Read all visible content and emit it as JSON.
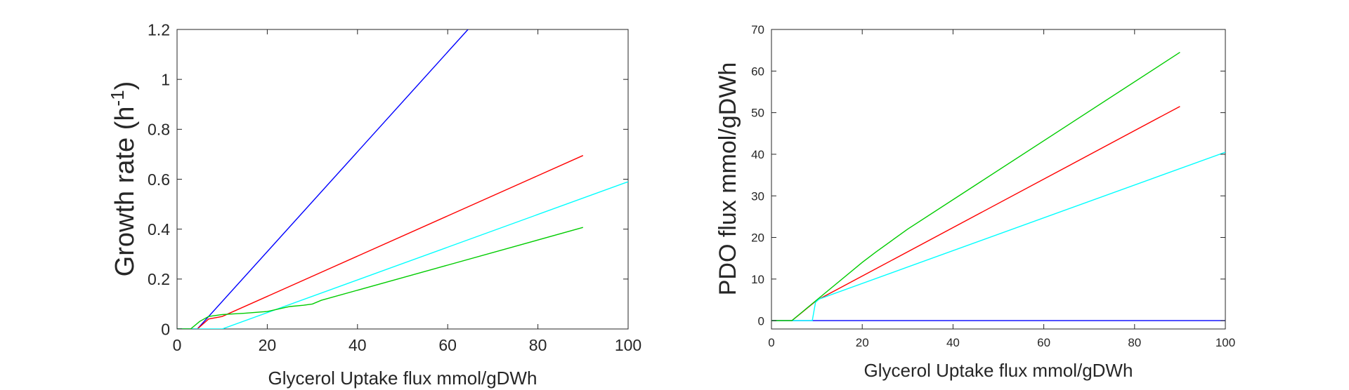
{
  "chart_data": [
    {
      "type": "line",
      "title": "",
      "xlabel": "Glycerol Uptake flux mmol/gDWh",
      "ylabel": "Growth rate (h",
      "ylabel_sup": "-1",
      "ylabel_suffix": ")",
      "xlim": [
        0,
        100
      ],
      "ylim": [
        0,
        1.2
      ],
      "xticks": [
        "0",
        "20",
        "40",
        "60",
        "80",
        "100"
      ],
      "yticks": [
        "0",
        "0.2",
        "0.4",
        "0.6",
        "0.8",
        "1",
        "1.2"
      ],
      "grid": false,
      "series": [
        {
          "color": "#0000ff",
          "x": [
            0,
            4.5,
            64.5
          ],
          "y": [
            0,
            0,
            1.2
          ]
        },
        {
          "color": "#ff0000",
          "x": [
            0,
            4.5,
            7,
            10,
            90
          ],
          "y": [
            0,
            0,
            0.04,
            0.05,
            0.695
          ]
        },
        {
          "color": "#00ffff",
          "x": [
            0,
            10,
            100
          ],
          "y": [
            0,
            0,
            0.59
          ]
        },
        {
          "color": "#00cc00",
          "x": [
            0,
            3,
            5,
            7,
            10,
            15,
            20,
            25,
            28,
            30,
            32,
            90
          ],
          "y": [
            0,
            0,
            0.03,
            0.05,
            0.058,
            0.063,
            0.07,
            0.09,
            0.095,
            0.1,
            0.115,
            0.407
          ]
        }
      ]
    },
    {
      "type": "line",
      "title": "",
      "xlabel": "Glycerol Uptake flux mmol/gDWh",
      "ylabel": "PDO flux mmol/gDWh",
      "xlim": [
        0,
        100
      ],
      "ylim": [
        -2,
        70
      ],
      "xticks": [
        "0",
        "20",
        "40",
        "60",
        "80",
        "100"
      ],
      "yticks": [
        "0",
        "10",
        "20",
        "30",
        "40",
        "50",
        "60",
        "70"
      ],
      "grid": false,
      "series": [
        {
          "color": "#0000ff",
          "x": [
            0,
            100
          ],
          "y": [
            0,
            0
          ]
        },
        {
          "color": "#ff0000",
          "x": [
            0,
            4.5,
            10,
            90
          ],
          "y": [
            0,
            0,
            4.9,
            51.5
          ]
        },
        {
          "color": "#00ffff",
          "x": [
            0,
            9,
            9.7,
            10.5,
            100
          ],
          "y": [
            0,
            0,
            4.4,
            5.2,
            40.5
          ]
        },
        {
          "color": "#00cc00",
          "x": [
            0,
            4.5,
            10,
            20,
            23,
            30,
            90
          ],
          "y": [
            0,
            0,
            5,
            14,
            16.5,
            22,
            64.5
          ]
        }
      ]
    }
  ]
}
